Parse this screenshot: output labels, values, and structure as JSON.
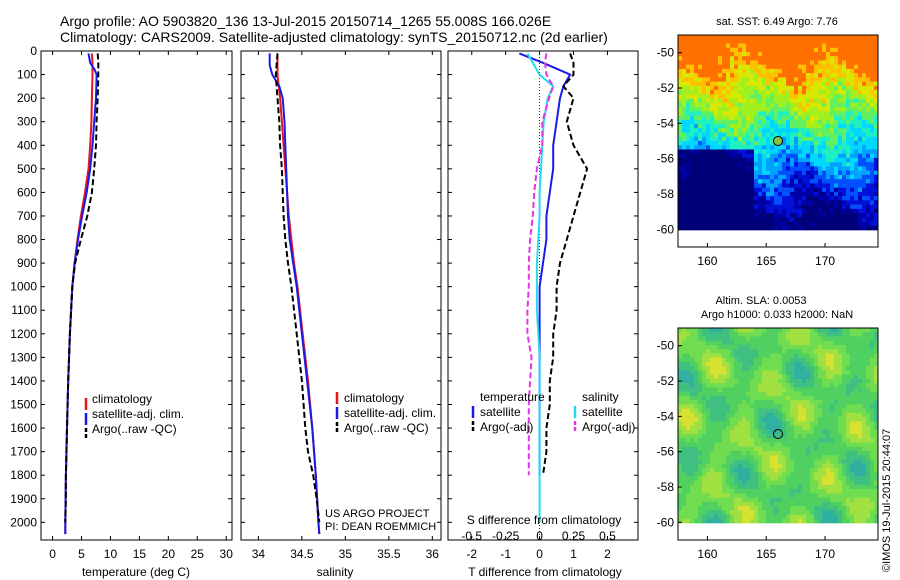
{
  "title": {
    "line1": "Argo profile: AO 5903820_136 13-Jul-2015 20150714_1265 55.008S 166.026E",
    "line2": "Climatology: CARS2009. Satellite-adjusted climatology: synTS_20150712.nc (2d earlier)"
  },
  "colors": {
    "climatology": "#e8141c",
    "satellite": "#1a1ae6",
    "argo": "#000000",
    "sat_s": "#22ddf0",
    "argo_s": "#e633e6",
    "marker": "#8bc34a"
  },
  "credit": {
    "line1": "US ARGO PROJECT",
    "line2": "PI: DEAN ROEMMICH"
  },
  "watermark": "©IMOS 19-Jul-2015 20:44:07",
  "chart_data": [
    {
      "id": "temperature",
      "type": "line",
      "xlabel": "temperature (deg C)",
      "ylabel": "",
      "xlim": [
        -2,
        31
      ],
      "ylim": [
        2075,
        0
      ],
      "xticks": [
        0,
        5,
        10,
        15,
        20,
        25,
        30
      ],
      "yticks": [
        0,
        100,
        200,
        300,
        400,
        500,
        600,
        700,
        800,
        900,
        1000,
        1100,
        1200,
        1300,
        1400,
        1500,
        1600,
        1700,
        1800,
        1900,
        2000
      ],
      "legend": [
        "climatology",
        "satellite-adj. clim.",
        "Argo(..raw -QC)"
      ],
      "legend_position": "lower-right",
      "series": [
        {
          "name": "climatology",
          "color_key": "climatology",
          "dash": false,
          "y": [
            10,
            50,
            100,
            200,
            300,
            400,
            500,
            600,
            700,
            800,
            900,
            1000,
            1200,
            1400,
            1600,
            1800,
            2000,
            2050
          ],
          "x": [
            6.8,
            6.9,
            6.9,
            6.8,
            6.7,
            6.5,
            6.2,
            5.6,
            4.9,
            4.3,
            3.8,
            3.4,
            3.0,
            2.7,
            2.5,
            2.3,
            2.2,
            2.2
          ]
        },
        {
          "name": "satellite-adj. clim.",
          "color_key": "satellite",
          "dash": false,
          "y": [
            10,
            50,
            80,
            100,
            200,
            300,
            400,
            500,
            600,
            700,
            800,
            900,
            1000,
            1200,
            1400,
            1600,
            1800,
            2000,
            2050
          ],
          "x": [
            6.2,
            6.5,
            7.3,
            7.6,
            7.5,
            7.2,
            6.9,
            6.5,
            5.9,
            5.1,
            4.4,
            3.8,
            3.4,
            3.0,
            2.7,
            2.5,
            2.3,
            2.2,
            2.2
          ]
        },
        {
          "name": "Argo(..raw -QC)",
          "color_key": "argo",
          "dash": true,
          "y": [
            10,
            50,
            100,
            200,
            300,
            400,
            500,
            600,
            700,
            800,
            900,
            1000,
            1200,
            1400,
            1600,
            1800,
            1900,
            2000
          ],
          "x": [
            7.8,
            7.9,
            7.9,
            7.8,
            7.6,
            7.5,
            7.2,
            6.8,
            6.0,
            4.9,
            3.9,
            3.4,
            3.0,
            2.7,
            2.5,
            2.3,
            2.3,
            2.2
          ]
        }
      ]
    },
    {
      "id": "salinity",
      "type": "line",
      "xlabel": "salinity",
      "ylabel": "",
      "xlim": [
        33.8,
        36.1
      ],
      "ylim": [
        2075,
        0
      ],
      "xticks": [
        34,
        34.5,
        35,
        35.5,
        36
      ],
      "legend": [
        "climatology",
        "satellite-adj. clim.",
        "Argo(..raw -QC)"
      ],
      "legend_position": "lower-right",
      "series": [
        {
          "name": "climatology",
          "color_key": "climatology",
          "dash": false,
          "y": [
            10,
            100,
            200,
            300,
            400,
            500,
            600,
            700,
            800,
            900,
            1000,
            1200,
            1400,
            1600,
            1800,
            2000,
            2050
          ],
          "x": [
            34.22,
            34.22,
            34.25,
            34.27,
            34.29,
            34.31,
            34.33,
            34.35,
            34.38,
            34.41,
            34.45,
            34.51,
            34.57,
            34.62,
            34.66,
            34.69,
            34.7
          ]
        },
        {
          "name": "satellite-adj. clim.",
          "color_key": "satellite",
          "dash": false,
          "y": [
            10,
            60,
            100,
            150,
            200,
            300,
            400,
            500,
            600,
            700,
            800,
            900,
            1000,
            1200,
            1400,
            1600,
            1800,
            2000,
            2050
          ],
          "x": [
            34.13,
            34.13,
            34.16,
            34.24,
            34.28,
            34.3,
            34.31,
            34.32,
            34.33,
            34.34,
            34.36,
            34.4,
            34.44,
            34.5,
            34.56,
            34.62,
            34.66,
            34.69,
            34.7
          ]
        },
        {
          "name": "Argo(..raw -QC)",
          "color_key": "argo",
          "dash": true,
          "y": [
            10,
            100,
            200,
            300,
            400,
            500,
            600,
            700,
            800,
            900,
            1000,
            1200,
            1400,
            1600,
            1700,
            1800,
            1900,
            2000
          ],
          "x": [
            34.22,
            34.2,
            34.22,
            34.24,
            34.25,
            34.27,
            34.28,
            34.29,
            34.31,
            34.34,
            34.38,
            34.44,
            34.5,
            34.54,
            34.57,
            34.63,
            34.67,
            34.7
          ]
        }
      ]
    },
    {
      "id": "difference",
      "type": "line",
      "xlabel": "T difference from climatology",
      "xlabel_top": "S difference from climatology",
      "ylabel": "",
      "xlim": [
        -2.7,
        2.9
      ],
      "ylim": [
        2075,
        0
      ],
      "xticks_T": [
        -2,
        -1,
        0,
        1,
        2
      ],
      "xticks_S": [
        -0.5,
        -0.25,
        0,
        0.25,
        0.5
      ],
      "s_scale": 4,
      "legend_T_title": "temperature",
      "legend_S_title": "salinity",
      "legend": [
        "satellite",
        "Argo(-adj)",
        "satellite",
        "Argo(-adj)"
      ],
      "legend_position": "lower-center",
      "series": [
        {
          "name": "T satellite",
          "color_key": "satellite",
          "dash": false,
          "var": "T",
          "y": [
            10,
            50,
            100,
            150,
            200,
            300,
            400,
            500,
            600,
            700,
            800,
            900,
            1000,
            1100,
            1200,
            1300,
            1400,
            1500,
            1600,
            1700,
            1800
          ],
          "x": [
            -0.6,
            0.1,
            0.9,
            0.7,
            0.6,
            0.5,
            0.4,
            0.4,
            0.3,
            0.2,
            0.2,
            0.1,
            0.0,
            0.0,
            0.0,
            0.0,
            0.0,
            0.0,
            0.0,
            0.0,
            0.0
          ]
        },
        {
          "name": "T Argo(-adj)",
          "color_key": "argo",
          "dash": true,
          "var": "T",
          "y": [
            10,
            50,
            100,
            150,
            200,
            300,
            400,
            500,
            600,
            700,
            800,
            900,
            1000,
            1100,
            1200,
            1300,
            1400,
            1500,
            1600,
            1700,
            1800
          ],
          "x": [
            0.9,
            1.0,
            1.0,
            0.7,
            1.0,
            0.8,
            1.0,
            1.4,
            1.2,
            1.0,
            0.8,
            0.6,
            0.5,
            0.5,
            0.4,
            0.4,
            0.3,
            0.3,
            0.2,
            0.2,
            0.1
          ]
        },
        {
          "name": "S satellite",
          "color_key": "sat_s",
          "dash": false,
          "var": "S",
          "y": [
            10,
            50,
            100,
            150,
            200,
            300,
            400,
            500,
            600,
            700,
            800,
            900,
            1000,
            1100,
            1200,
            1300,
            1400,
            1500,
            1600,
            1700,
            1800,
            1900,
            2000
          ],
          "x": [
            -0.09,
            -0.05,
            0.0,
            0.1,
            0.06,
            0.03,
            0.02,
            0.01,
            0.0,
            0.0,
            -0.01,
            -0.02,
            -0.02,
            -0.02,
            -0.01,
            0.0,
            0.0,
            0.0,
            0.0,
            0.0,
            0.0,
            0.0,
            0.0
          ]
        },
        {
          "name": "S Argo(-adj)",
          "color_key": "argo_s",
          "dash": true,
          "var": "S",
          "y": [
            10,
            50,
            100,
            150,
            200,
            300,
            400,
            500,
            600,
            700,
            800,
            900,
            1000,
            1100,
            1200,
            1300,
            1400,
            1500,
            1600,
            1700,
            1800
          ],
          "x": [
            0.05,
            0.04,
            0.05,
            0.1,
            0.07,
            0.02,
            0.02,
            -0.02,
            -0.04,
            -0.05,
            -0.07,
            -0.08,
            -0.08,
            -0.09,
            -0.09,
            -0.06,
            -0.07,
            -0.08,
            -0.08,
            -0.08,
            -0.08
          ]
        }
      ]
    },
    {
      "id": "sst_map",
      "type": "heatmap",
      "title": "sat. SST: 6.49 Argo: 7.76",
      "xlim": [
        157.5,
        174.5
      ],
      "ylim": [
        -61,
        -49
      ],
      "xticks": [
        160,
        165,
        170
      ],
      "yticks": [
        -50,
        -52,
        -54,
        -56,
        -58,
        -60
      ],
      "marker": {
        "lon": 166.0,
        "lat": -55.0
      },
      "note": "colour field of sea-surface temperature; warm (yellow/orange) north, cold (dark blue) south"
    },
    {
      "id": "sla_map",
      "type": "heatmap",
      "title": "Altim. SLA: 0.0053",
      "subtitle": "Argo h1000: 0.033 h2000: NaN",
      "xlim": [
        157.5,
        174.5
      ],
      "ylim": [
        -61,
        -49
      ],
      "xticks": [
        160,
        165,
        170
      ],
      "yticks": [
        -50,
        -52,
        -54,
        -56,
        -58,
        -60
      ],
      "marker": {
        "lon": 166.0,
        "lat": -55.0
      },
      "note": "colour field of altimetric sea level anomaly, mostly green with patches of yellow and cyan"
    }
  ]
}
